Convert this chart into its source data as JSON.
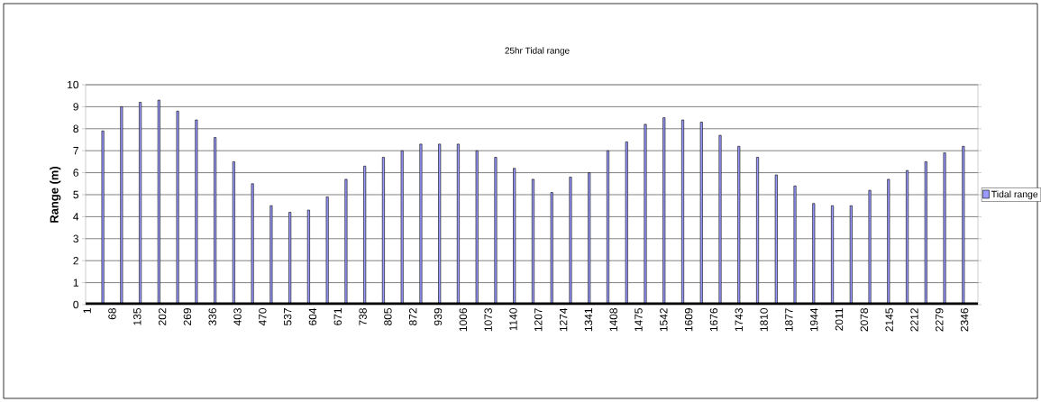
{
  "chart_data": {
    "type": "bar",
    "title": "25hr Tidal range",
    "ylabel": "Range (m)",
    "x": [
      43,
      93,
      143,
      193,
      243,
      293,
      343,
      393,
      443,
      493,
      543,
      593,
      643,
      693,
      743,
      793,
      843,
      893,
      943,
      993,
      1043,
      1093,
      1143,
      1193,
      1243,
      1293,
      1343,
      1393,
      1443,
      1493,
      1543,
      1593,
      1643,
      1693,
      1743,
      1793,
      1843,
      1893,
      1943,
      1993,
      2043,
      2093,
      2143,
      2193,
      2243,
      2293,
      2343
    ],
    "series": [
      {
        "name": "Tidal range",
        "color": "#9999ff",
        "values": [
          7.9,
          9.0,
          9.2,
          9.3,
          8.8,
          8.4,
          7.6,
          6.5,
          5.5,
          4.5,
          4.2,
          4.3,
          4.9,
          5.7,
          6.3,
          6.7,
          7.0,
          7.3,
          7.3,
          7.3,
          7.0,
          6.7,
          6.2,
          5.7,
          5.1,
          5.8,
          6.0,
          7.0,
          7.4,
          8.2,
          8.5,
          8.4,
          8.3,
          7.7,
          7.2,
          6.7,
          5.9,
          5.4,
          4.6,
          4.5,
          4.5,
          5.2,
          5.7,
          6.1,
          6.5,
          6.9,
          7.2
        ]
      }
    ],
    "xlim": [
      -3,
      2382
    ],
    "xticks": [
      1,
      68,
      135,
      202,
      269,
      336,
      403,
      470,
      537,
      604,
      671,
      738,
      805,
      872,
      939,
      1006,
      1073,
      1140,
      1207,
      1274,
      1341,
      1408,
      1475,
      1542,
      1609,
      1676,
      1743,
      1810,
      1877,
      1944,
      2011,
      2078,
      2145,
      2212,
      2279,
      2346
    ],
    "ylim": [
      0,
      10
    ],
    "yticks": [
      0,
      1,
      2,
      3,
      4,
      5,
      6,
      7,
      8,
      9,
      10
    ],
    "grid": "y",
    "legend": "right"
  }
}
